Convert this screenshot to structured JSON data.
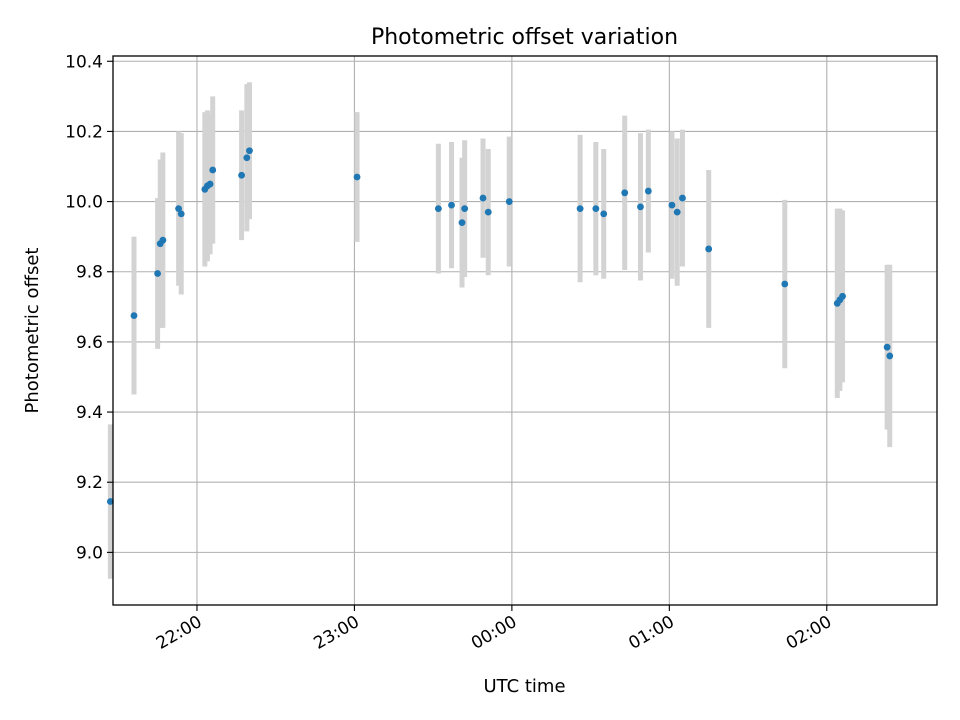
{
  "chart_data": {
    "type": "scatter",
    "title": "Photometric offset variation",
    "xlabel": "UTC time",
    "ylabel": "Photometric offset",
    "x_ticks": [
      "22:00",
      "23:00",
      "00:00",
      "01:00",
      "02:00"
    ],
    "y_ticks": [
      "9.0",
      "9.2",
      "9.4",
      "9.6",
      "9.8",
      "10.0",
      "10.2",
      "10.4"
    ],
    "xlim": [
      "21:28",
      "02:42"
    ],
    "ylim": [
      8.85,
      10.415
    ],
    "grid": true,
    "colors": {
      "point": "#1f77b4",
      "errorbar": "#d3d3d3",
      "grid": "#b0b0b0"
    },
    "points": [
      {
        "x": "21:27",
        "y": 9.145,
        "err": 0.22
      },
      {
        "x": "21:36",
        "y": 9.675,
        "err": 0.225
      },
      {
        "x": "21:45",
        "y": 9.795,
        "err": 0.215
      },
      {
        "x": "21:46",
        "y": 9.88,
        "err": 0.24
      },
      {
        "x": "21:47",
        "y": 9.89,
        "err": 0.25
      },
      {
        "x": "21:53",
        "y": 9.98,
        "err": 0.22
      },
      {
        "x": "21:54",
        "y": 9.965,
        "err": 0.23
      },
      {
        "x": "22:03",
        "y": 10.035,
        "err": 0.22
      },
      {
        "x": "22:04",
        "y": 10.045,
        "err": 0.215
      },
      {
        "x": "22:05",
        "y": 10.05,
        "err": 0.2
      },
      {
        "x": "22:06",
        "y": 10.09,
        "err": 0.21
      },
      {
        "x": "22:17",
        "y": 10.075,
        "err": 0.185
      },
      {
        "x": "22:19",
        "y": 10.125,
        "err": 0.21
      },
      {
        "x": "22:20",
        "y": 10.145,
        "err": 0.195
      },
      {
        "x": "23:01",
        "y": 10.07,
        "err": 0.185
      },
      {
        "x": "23:32",
        "y": 9.98,
        "err": 0.185
      },
      {
        "x": "23:37",
        "y": 9.99,
        "err": 0.18
      },
      {
        "x": "23:41",
        "y": 9.94,
        "err": 0.185
      },
      {
        "x": "23:42",
        "y": 9.98,
        "err": 0.195
      },
      {
        "x": "23:49",
        "y": 10.01,
        "err": 0.17
      },
      {
        "x": "23:51",
        "y": 9.97,
        "err": 0.18
      },
      {
        "x": "23:59",
        "y": 10.0,
        "err": 0.185
      },
      {
        "x": "00:26",
        "y": 9.98,
        "err": 0.21
      },
      {
        "x": "00:32",
        "y": 9.98,
        "err": 0.19
      },
      {
        "x": "00:35",
        "y": 9.965,
        "err": 0.185
      },
      {
        "x": "00:43",
        "y": 10.025,
        "err": 0.22
      },
      {
        "x": "00:49",
        "y": 9.985,
        "err": 0.21
      },
      {
        "x": "00:52",
        "y": 10.03,
        "err": 0.175
      },
      {
        "x": "01:01",
        "y": 9.99,
        "err": 0.21
      },
      {
        "x": "01:03",
        "y": 9.97,
        "err": 0.21
      },
      {
        "x": "01:05",
        "y": 10.01,
        "err": 0.195
      },
      {
        "x": "01:15",
        "y": 9.865,
        "err": 0.225
      },
      {
        "x": "01:44",
        "y": 9.765,
        "err": 0.24
      },
      {
        "x": "02:04",
        "y": 9.71,
        "err": 0.27
      },
      {
        "x": "02:05",
        "y": 9.72,
        "err": 0.26
      },
      {
        "x": "02:06",
        "y": 9.73,
        "err": 0.245
      },
      {
        "x": "02:23",
        "y": 9.585,
        "err": 0.235
      },
      {
        "x": "02:24",
        "y": 9.56,
        "err": 0.26
      }
    ]
  }
}
